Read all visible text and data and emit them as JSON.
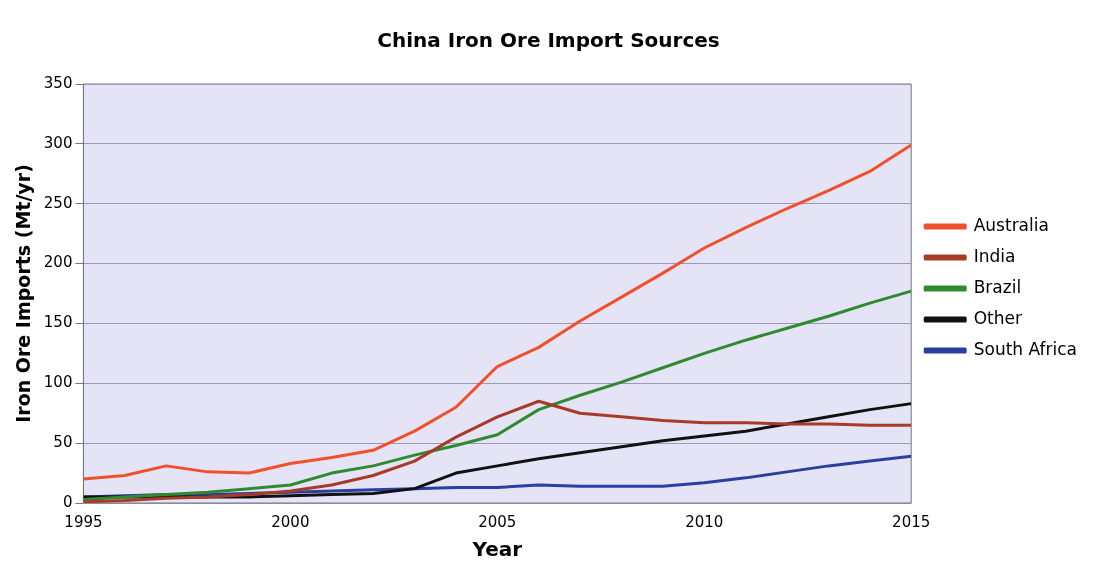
{
  "chart_data": {
    "type": "line",
    "title": "China Iron Ore Import Sources",
    "xlabel": "Year",
    "ylabel": "Iron Ore Imports (Mt/yr)",
    "x": [
      1995,
      1996,
      1997,
      1998,
      1999,
      2000,
      2001,
      2002,
      2003,
      2004,
      2005,
      2006,
      2007,
      2008,
      2009,
      2010,
      2011,
      2012,
      2013,
      2014,
      2015
    ],
    "series": [
      {
        "name": "Australia",
        "color": "#f0502a",
        "values": [
          20,
          23,
          31,
          26,
          25,
          33,
          38,
          44,
          60,
          80,
          114,
          130,
          152,
          172,
          192,
          213,
          230,
          246,
          261,
          277,
          299
        ]
      },
      {
        "name": "India",
        "color": "#a83a28",
        "values": [
          1,
          2,
          4,
          5,
          7,
          10,
          15,
          23,
          35,
          55,
          72,
          85,
          75,
          72,
          69,
          67,
          67,
          66,
          66,
          65,
          65
        ]
      },
      {
        "name": "Brazil",
        "color": "#2e8b2e",
        "values": [
          3,
          5,
          7,
          9,
          12,
          15,
          25,
          31,
          40,
          48,
          57,
          78,
          90,
          101,
          113,
          125,
          136,
          146,
          156,
          167,
          177
        ]
      },
      {
        "name": "Other",
        "color": "#111111",
        "values": [
          5,
          5,
          5,
          5,
          5,
          6,
          7,
          8,
          12,
          25,
          31,
          37,
          42,
          47,
          52,
          56,
          60,
          66,
          72,
          78,
          83
        ]
      },
      {
        "name": "South Africa",
        "color": "#2b3fa0",
        "values": [
          5,
          6,
          7,
          7,
          8,
          9,
          10,
          11,
          12,
          13,
          13,
          15,
          14,
          14,
          14,
          17,
          21,
          26,
          31,
          35,
          39
        ]
      }
    ],
    "xlim": [
      1995,
      2015
    ],
    "xticks": [
      1995,
      2000,
      2005,
      2010,
      2015
    ],
    "ylim": [
      0,
      350
    ],
    "yticks": [
      0,
      50,
      100,
      150,
      200,
      250,
      300,
      350
    ],
    "grid": "y",
    "legend": "right",
    "marker": "none",
    "line_style": "solid"
  }
}
